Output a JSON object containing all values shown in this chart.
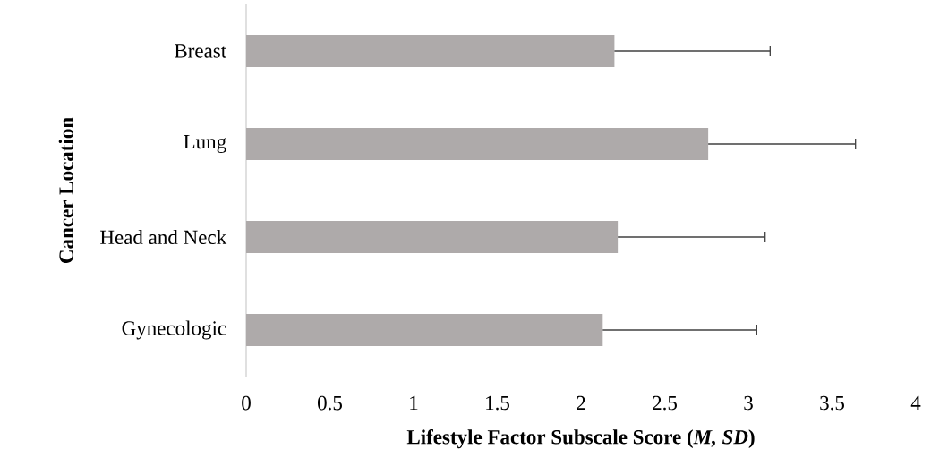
{
  "chart_data": {
    "type": "bar",
    "orientation": "horizontal",
    "categories": [
      "Breast",
      "Lung",
      "Head and Neck",
      "Gynecologic"
    ],
    "values": [
      2.2,
      2.76,
      2.22,
      2.13
    ],
    "errors": [
      [
        2.2,
        3.13
      ],
      [
        2.76,
        3.64
      ],
      [
        2.22,
        3.1
      ],
      [
        2.13,
        3.05
      ]
    ],
    "color": "#aeaaaa",
    "xlim": [
      0,
      4
    ],
    "xticks": [
      0,
      0.5,
      1,
      1.5,
      2,
      2.5,
      3,
      3.5,
      4
    ],
    "xlabel": "Lifestyle Factor Subscale Score (*M, SD*)",
    "ylabel": "Cancer Location"
  }
}
